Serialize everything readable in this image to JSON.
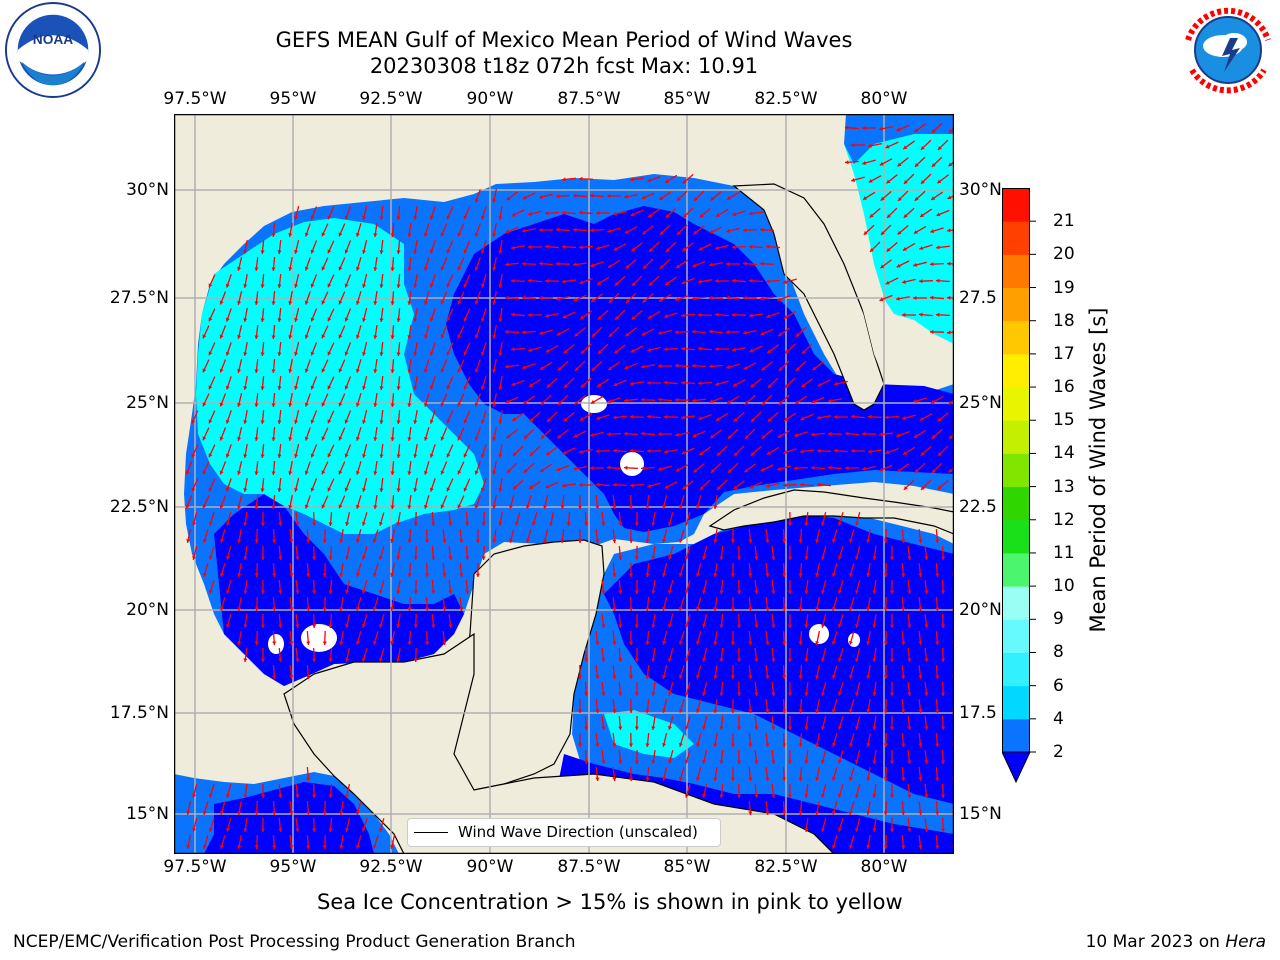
{
  "title_line1": "GEFS MEAN Gulf of Mexico Mean Period of Wind Waves",
  "title_line2": "20230308 t18z 072h fcst   Max: 10.91",
  "lon_labels": [
    "97.5°W",
    "95°W",
    "92.5°W",
    "90°W",
    "87.5°W",
    "85°W",
    "82.5°W",
    "80°W"
  ],
  "lat_labels_left": [
    "30°N",
    "27.5°N",
    "25°N",
    "22.5°N",
    "20°N",
    "17.5°N",
    "15°N"
  ],
  "lat_labels_right": [
    "30°N",
    "27.5",
    "25°N",
    "22.5",
    "20°N",
    "17.5",
    "15°N"
  ],
  "colorbar": {
    "title": "Mean Period of Wind Waves [s]",
    "tick_labels": [
      "2",
      "4",
      "6",
      "8",
      "9",
      "10",
      "11",
      "12",
      "13",
      "14",
      "15",
      "16",
      "17",
      "18",
      "19",
      "20",
      "21"
    ],
    "colors": [
      "#0a74ff",
      "#00d8ff",
      "#33f0ff",
      "#66faff",
      "#99fff4",
      "#4cf56e",
      "#1ae01a",
      "#30d600",
      "#80e600",
      "#c4f000",
      "#e8f500",
      "#ffee00",
      "#ffc800",
      "#ffa000",
      "#ff7800",
      "#ff4000",
      "#ff1000"
    ],
    "under_color": "#0000ff"
  },
  "legend": {
    "label": "Wind Wave Direction (unscaled)"
  },
  "ice_note": "Sea Ice Concentration > 15% is shown in pink to yellow",
  "footer_left": "NCEP/EMC/Verification Post Processing Product Generation Branch",
  "footer_right_date": "10 Mar 2023 on",
  "footer_right_host": "Hera",
  "logos": {
    "noaa": {
      "text": "NOAA",
      "ring_text": "NATIONAL OCEANIC AND ATMOSPHERIC ADMINISTRATION · U.S. DEPARTMENT OF COMMERCE"
    },
    "nws": {
      "ring_text": "NATIONAL WEATHER SERVICE"
    }
  },
  "colors": {
    "land": "#efecdc",
    "wave_lt2": "#0000ff",
    "wave_2_4": "#0a74ff",
    "wave_4_6": "#00ffff",
    "missing": "#ffffff",
    "arrow": "#ff0000",
    "grid": "#b0b0b0"
  }
}
